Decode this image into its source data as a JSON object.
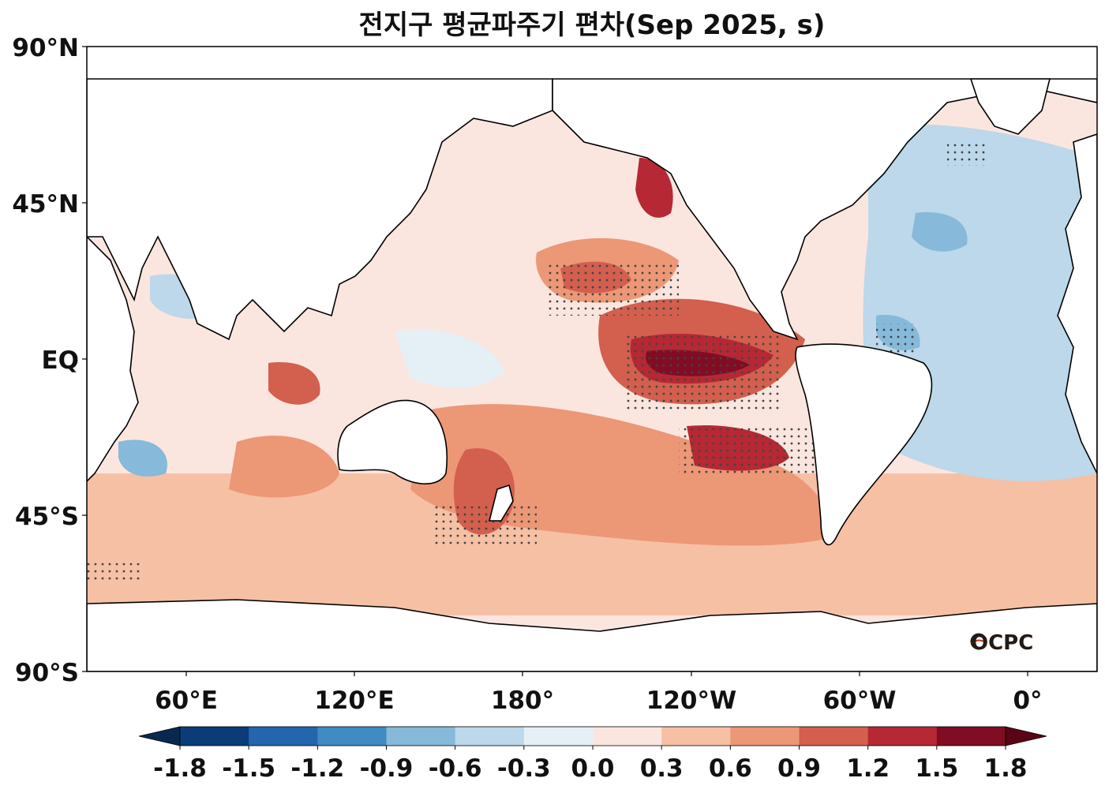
{
  "title": "전지구 평균파주기 편차(Sep 2025, s)",
  "map": {
    "lat_labels": [
      "90°N",
      "45°N",
      "EQ",
      "45°S",
      "90°S"
    ],
    "lon_labels": [
      "60°E",
      "120°E",
      "180°",
      "120°W",
      "60°W",
      "0°"
    ],
    "logo_text": "OCPC"
  },
  "colorbar": {
    "tick_labels": [
      "-1.8",
      "-1.5",
      "-1.2",
      "-0.9",
      "-0.6",
      "-0.3",
      "0.0",
      "0.3",
      "0.6",
      "0.9",
      "1.2",
      "1.5",
      "1.8"
    ],
    "colors": [
      "#0b3c78",
      "#2366ae",
      "#3f8bc2",
      "#86b9da",
      "#bcd8ea",
      "#e5eff6",
      "#fbe6df",
      "#f6c0a5",
      "#ec9776",
      "#d35f4e",
      "#b52834",
      "#800d24"
    ],
    "under_color": "#08284f",
    "over_color": "#5a0416"
  }
}
